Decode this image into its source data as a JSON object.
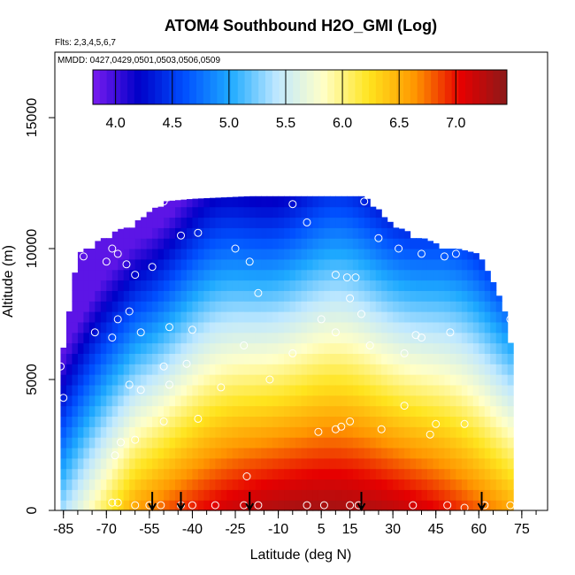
{
  "chart_data": {
    "type": "heatmap",
    "title": "ATOM4 Southbound H2O_GMI (Log)",
    "flights_note": "Flts: 2,3,4,5,6,7",
    "dates_note": "MMDD: 0427,0429,0501,0503,0506,0509",
    "xlabel": "Latitude (deg N)",
    "ylabel": "Altitude (m)",
    "xlim": [
      -88,
      84
    ],
    "ylim": [
      0,
      17500
    ],
    "x_ticks": [
      -85,
      -70,
      -55,
      -40,
      -25,
      -10,
      5,
      15,
      30,
      45,
      60,
      75
    ],
    "x_minor_step": 5,
    "y_ticks": [
      0,
      5000,
      10000,
      15000
    ],
    "colorbar": {
      "range": [
        3.8,
        7.45
      ],
      "tick_values": [
        4.0,
        4.5,
        5.0,
        5.5,
        6.0,
        6.5,
        7.0
      ],
      "tick_labels": [
        "4.0",
        "4.5",
        "5.0",
        "5.5",
        "6.0",
        "6.5",
        "7.0"
      ],
      "colors": [
        "#7a1cf0",
        "#0000c8",
        "#0050ff",
        "#1eaaff",
        "#bfe8ff",
        "#ffffc8",
        "#ffe41e",
        "#ff9600",
        "#e60000",
        "#8b1a1a"
      ]
    },
    "surface_arrows_lat": [
      -54,
      -44,
      -20,
      19,
      61
    ],
    "model_field": {
      "lat_range": [
        -86,
        72
      ],
      "top_altitude_profile": [
        [
          -86,
          5500
        ],
        [
          -80,
          9800
        ],
        [
          -70,
          10500
        ],
        [
          -60,
          11000
        ],
        [
          -50,
          11800
        ],
        [
          -40,
          11900
        ],
        [
          -20,
          12000
        ],
        [
          0,
          12000
        ],
        [
          20,
          12000
        ],
        [
          25,
          11500
        ],
        [
          30,
          10900
        ],
        [
          45,
          10200
        ],
        [
          60,
          9800
        ],
        [
          66,
          8500
        ],
        [
          70,
          7300
        ],
        [
          72,
          5500
        ]
      ],
      "moisture_peak_lat": 5,
      "value_at_surface_equator": 7.35,
      "value_at_top_high_southern_latitude": 3.9
    },
    "observations": [
      {
        "lat": -72,
        "alt": 11000
      },
      {
        "lat": -68,
        "alt": 10000
      },
      {
        "lat": -70,
        "alt": 9500
      },
      {
        "lat": -66,
        "alt": 9800
      },
      {
        "lat": -78,
        "alt": 9700
      },
      {
        "lat": -63,
        "alt": 9400
      },
      {
        "lat": -60,
        "alt": 9000
      },
      {
        "lat": -54,
        "alt": 9300
      },
      {
        "lat": -50,
        "alt": 11800
      },
      {
        "lat": -44,
        "alt": 10500
      },
      {
        "lat": -38,
        "alt": 10600
      },
      {
        "lat": -25,
        "alt": 10000
      },
      {
        "lat": -20,
        "alt": 9500
      },
      {
        "lat": -5,
        "alt": 11700
      },
      {
        "lat": 0,
        "alt": 11000
      },
      {
        "lat": 20,
        "alt": 11800
      },
      {
        "lat": 25,
        "alt": 10400
      },
      {
        "lat": 32,
        "alt": 10000
      },
      {
        "lat": 40,
        "alt": 9800
      },
      {
        "lat": 48,
        "alt": 9700
      },
      {
        "lat": 52,
        "alt": 9800
      },
      {
        "lat": -17,
        "alt": 8300
      },
      {
        "lat": 10,
        "alt": 9000
      },
      {
        "lat": 14,
        "alt": 8900
      },
      {
        "lat": 17,
        "alt": 8900
      },
      {
        "lat": 15,
        "alt": 8100
      },
      {
        "lat": 19,
        "alt": 7500
      },
      {
        "lat": 22,
        "alt": 6300
      },
      {
        "lat": 5,
        "alt": 7300
      },
      {
        "lat": 10,
        "alt": 6800
      },
      {
        "lat": -62,
        "alt": 7600
      },
      {
        "lat": -66,
        "alt": 7300
      },
      {
        "lat": -74,
        "alt": 6800
      },
      {
        "lat": -68,
        "alt": 6600
      },
      {
        "lat": -58,
        "alt": 6800
      },
      {
        "lat": -48,
        "alt": 7000
      },
      {
        "lat": -40,
        "alt": 6900
      },
      {
        "lat": -22,
        "alt": 6300
      },
      {
        "lat": -5,
        "alt": 6000
      },
      {
        "lat": 38,
        "alt": 6700
      },
      {
        "lat": 40,
        "alt": 6600
      },
      {
        "lat": 50,
        "alt": 6800
      },
      {
        "lat": 71,
        "alt": 7300
      },
      {
        "lat": 34,
        "alt": 6000
      },
      {
        "lat": -50,
        "alt": 5500
      },
      {
        "lat": -42,
        "alt": 5600
      },
      {
        "lat": -30,
        "alt": 4700
      },
      {
        "lat": -13,
        "alt": 5000
      },
      {
        "lat": -48,
        "alt": 4800
      },
      {
        "lat": -58,
        "alt": 4600
      },
      {
        "lat": -62,
        "alt": 4800
      },
      {
        "lat": -85,
        "alt": 4300
      },
      {
        "lat": 34,
        "alt": 4000
      },
      {
        "lat": -50,
        "alt": 3400
      },
      {
        "lat": -38,
        "alt": 3500
      },
      {
        "lat": 10,
        "alt": 3100
      },
      {
        "lat": 12,
        "alt": 3200
      },
      {
        "lat": 15,
        "alt": 3400
      },
      {
        "lat": 4,
        "alt": 3000
      },
      {
        "lat": 26,
        "alt": 3100
      },
      {
        "lat": 45,
        "alt": 3300
      },
      {
        "lat": 55,
        "alt": 3300
      },
      {
        "lat": 43,
        "alt": 2900
      },
      {
        "lat": -65,
        "alt": 2600
      },
      {
        "lat": -60,
        "alt": 2700
      },
      {
        "lat": -67,
        "alt": 2100
      },
      {
        "lat": -21,
        "alt": 1300
      },
      {
        "lat": -68,
        "alt": 300
      },
      {
        "lat": -66,
        "alt": 300
      },
      {
        "lat": -60,
        "alt": 200
      },
      {
        "lat": -55,
        "alt": 200
      },
      {
        "lat": -51,
        "alt": 200
      },
      {
        "lat": -44,
        "alt": 200
      },
      {
        "lat": -40,
        "alt": 200
      },
      {
        "lat": -32,
        "alt": 200
      },
      {
        "lat": -22,
        "alt": 200
      },
      {
        "lat": -17,
        "alt": 200
      },
      {
        "lat": 0,
        "alt": 200
      },
      {
        "lat": 6,
        "alt": 200
      },
      {
        "lat": 15,
        "alt": 200
      },
      {
        "lat": 18,
        "alt": 200
      },
      {
        "lat": 37,
        "alt": 200
      },
      {
        "lat": 49,
        "alt": 200
      },
      {
        "lat": 55,
        "alt": 100
      },
      {
        "lat": 62,
        "alt": 200
      },
      {
        "lat": 71,
        "alt": 200
      },
      {
        "lat": -86,
        "alt": 5500
      }
    ]
  }
}
